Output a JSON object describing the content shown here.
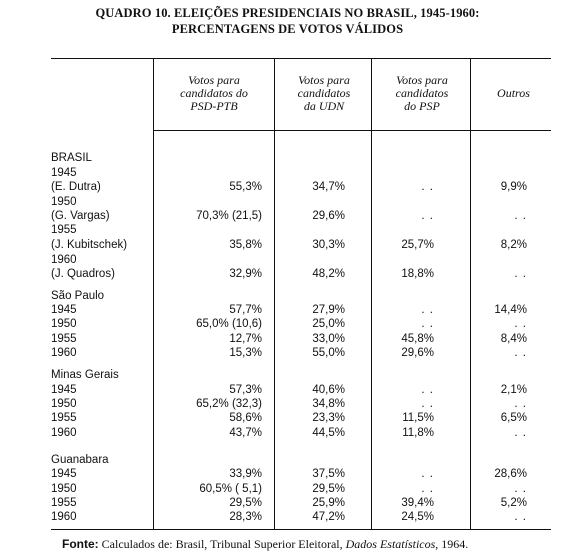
{
  "title_line1": "QUADRO 10. ELEIÇÕES PRESIDENCIAIS NO BRASIL, 1945-1960:",
  "title_line2": "PERCENTAGENS DE VOTOS VÁLIDOS",
  "headers": {
    "col1": [
      "Votos para",
      "candidatos do",
      "PSD-PTB"
    ],
    "col2": [
      "Votos para",
      "candidatos",
      "da UDN"
    ],
    "col3": [
      "Votos para",
      "candidatos",
      "do PSP"
    ],
    "col4": [
      "Outros"
    ]
  },
  "rows": [
    {
      "label": "BRASIL",
      "c1": "",
      "c2": "",
      "c3": "",
      "c4": ""
    },
    {
      "label": "1945",
      "c1": "",
      "c2": "",
      "c3": "",
      "c4": ""
    },
    {
      "label": "(E. Dutra)",
      "c1": "55,3%",
      "c2": "34,7%",
      "c3": ". .",
      "c4": "9,9%"
    },
    {
      "label": "1950",
      "c1": "",
      "c2": "",
      "c3": "",
      "c4": ""
    },
    {
      "label": "(G. Vargas)",
      "c1": "70,3%  (21,5)",
      "c2": "29,6%",
      "c3": ". .",
      "c4": ". ."
    },
    {
      "label": "1955",
      "c1": "",
      "c2": "",
      "c3": "",
      "c4": ""
    },
    {
      "label": "(J. Kubitschek)",
      "c1": "35,8%",
      "c2": "30,3%",
      "c3": "25,7%",
      "c4": "8,2%"
    },
    {
      "label": "1960",
      "c1": "",
      "c2": "",
      "c3": "",
      "c4": ""
    },
    {
      "label": "(J. Quadros)",
      "c1": "32,9%",
      "c2": "48,2%",
      "c3": "18,8%",
      "c4": ". ."
    },
    {
      "label": "São Paulo",
      "c1": "",
      "c2": "",
      "c3": "",
      "c4": ""
    },
    {
      "label": "1945",
      "c1": "57,7%",
      "c2": "27,9%",
      "c3": ". .",
      "c4": "14,4%"
    },
    {
      "label": "1950",
      "c1": "65,0%  (10,6)",
      "c2": "25,0%",
      "c3": ". .",
      "c4": ". ."
    },
    {
      "label": "1955",
      "c1": "12,7%",
      "c2": "33,0%",
      "c3": "45,8%",
      "c4": "8,4%"
    },
    {
      "label": "1960",
      "c1": "15,3%",
      "c2": "55,0%",
      "c3": "29,6%",
      "c4": ". ."
    },
    {
      "label": "Minas Gerais",
      "c1": "",
      "c2": "",
      "c3": "",
      "c4": ""
    },
    {
      "label": "1945",
      "c1": "57,3%",
      "c2": "40,6%",
      "c3": ". .",
      "c4": "2,1%"
    },
    {
      "label": "1950",
      "c1": "65,2%  (32,3)",
      "c2": "34,8%",
      "c3": ". .",
      "c4": ". ."
    },
    {
      "label": "1955",
      "c1": "58,6%",
      "c2": "23,3%",
      "c3": "11,5%",
      "c4": "6,5%"
    },
    {
      "label": "1960",
      "c1": "43,7%",
      "c2": "44,5%",
      "c3": "11,8%",
      "c4": ". ."
    },
    {
      "label": "Guanabara",
      "c1": "",
      "c2": "",
      "c3": "",
      "c4": ""
    },
    {
      "label": "1945",
      "c1": "33,9%",
      "c2": "37,5%",
      "c3": ". .",
      "c4": "28,6%"
    },
    {
      "label": "1950",
      "c1": "60,5%  ( 5,1)",
      "c2": "29,5%",
      "c3": ". .",
      "c4": ". ."
    },
    {
      "label": "1955",
      "c1": "29,5%",
      "c2": "25,9%",
      "c3": "39,4%",
      "c4": "5,2%"
    },
    {
      "label": "1960",
      "c1": "28,3%",
      "c2": "47,2%",
      "c3": "24,5%",
      "c4": ". ."
    }
  ],
  "source": {
    "prefix": "Fonte:",
    "text": " Calculados de: Brasil, Tribunal Superior Eleitoral, ",
    "italic": "Dados Estatísticos",
    "suffix": ", 1964."
  }
}
